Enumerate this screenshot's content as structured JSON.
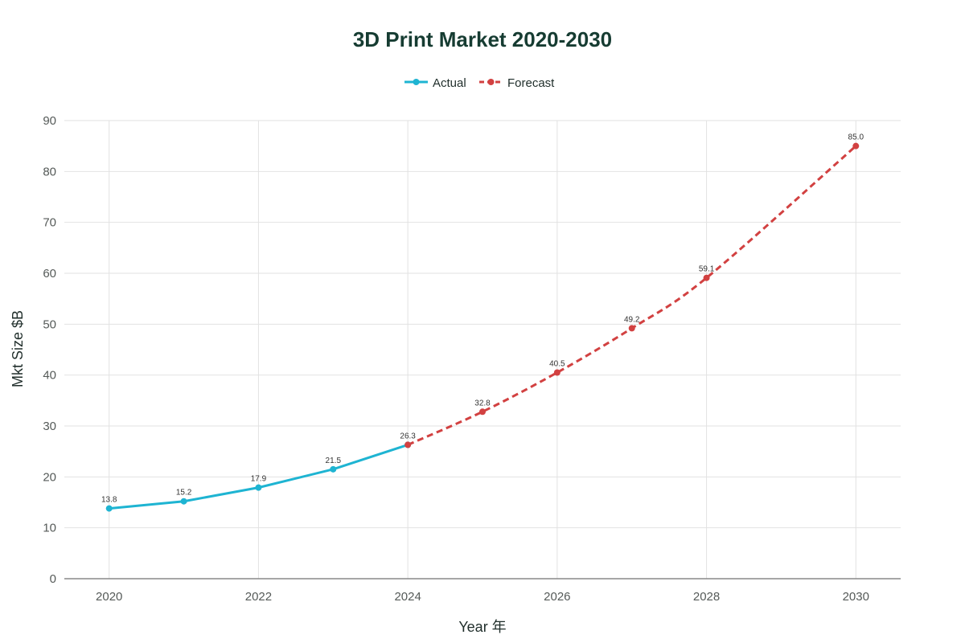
{
  "chart_data": {
    "type": "line",
    "title": "3D Print Market 2020-2030",
    "xlabel": "Year 年",
    "ylabel": "Mkt Size $B",
    "xlim": [
      2019.4,
      2030.6
    ],
    "ylim": [
      0,
      90
    ],
    "x_ticks": [
      2020,
      2022,
      2024,
      2026,
      2028,
      2030
    ],
    "y_ticks": [
      0,
      10,
      20,
      30,
      40,
      50,
      60,
      70,
      80,
      90
    ],
    "grid": true,
    "legend_position": "top-center",
    "series": [
      {
        "name": "Actual",
        "color": "#1eb4d2",
        "dash": "solid",
        "x": [
          2020,
          2021,
          2022,
          2023,
          2024
        ],
        "values": [
          13.8,
          15.2,
          17.9,
          21.5,
          26.3
        ],
        "labels": [
          "13.8",
          "15.2",
          "17.9",
          "21.5",
          "26.3"
        ]
      },
      {
        "name": "Forecast",
        "color": "#d24141",
        "dash": "dashed",
        "x": [
          2024,
          2025,
          2026,
          2027,
          2028,
          2030
        ],
        "values": [
          26.3,
          32.8,
          40.5,
          49.2,
          59.1,
          85.0
        ],
        "labels": [
          "26.3",
          "32.8",
          "40.5",
          "49.2",
          "59.1",
          "85.0"
        ]
      }
    ]
  }
}
